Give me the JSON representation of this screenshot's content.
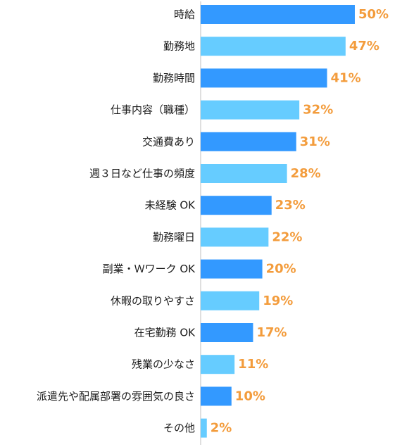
{
  "chart_data": {
    "type": "bar",
    "orientation": "horizontal",
    "categories": [
      "時給",
      "勤務地",
      "勤務時間",
      "仕事内容（職種）",
      "交通費あり",
      "週３日など仕事の頻度",
      "未経験 OK",
      "勤務曜日",
      "副業・Ｗワーク OK",
      "休暇の取りやすさ",
      "在宅勤務 OK",
      "残業の少なさ",
      "派遣先や配属部署の雰囲気の良さ",
      "その他"
    ],
    "values": [
      50,
      47,
      41,
      32,
      31,
      28,
      23,
      22,
      20,
      19,
      17,
      11,
      10,
      2
    ],
    "value_labels": [
      "50%",
      "47%",
      "41%",
      "32%",
      "31%",
      "28%",
      "23%",
      "22%",
      "20%",
      "19%",
      "17%",
      "11%",
      "10%",
      "2%"
    ],
    "unit": "%",
    "xlim": [
      0,
      50
    ],
    "grid": false,
    "legend": "none",
    "colors": {
      "bar_dark": "#3399ff",
      "bar_light": "#66ccff",
      "label": "#f39c3c",
      "axis": "#bfbfbf",
      "text": "#1a1a1a"
    }
  }
}
